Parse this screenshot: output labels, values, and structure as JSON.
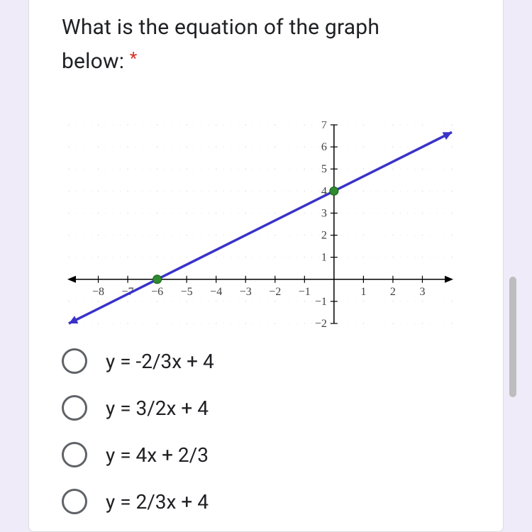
{
  "question": {
    "title_part1": "What is the equation of the graph",
    "title_part2": "below:",
    "required_marker": "*"
  },
  "graph": {
    "type": "line-plot",
    "x_range": [
      -9,
      4
    ],
    "y_range": [
      -2,
      7
    ],
    "x_ticks": [
      -8,
      -7,
      -6,
      -5,
      -4,
      -3,
      -2,
      -1,
      1,
      2,
      3
    ],
    "y_ticks": [
      -2,
      -1,
      1,
      2,
      3,
      4,
      5,
      6,
      7
    ],
    "line": {
      "color": "#3933c8",
      "width": 3.5,
      "points": [
        [
          -9,
          -2
        ],
        [
          4,
          6.666
        ]
      ],
      "arrow_start": true,
      "arrow_end": true
    },
    "marked_points": [
      {
        "x": -6,
        "y": 0,
        "color": "#2e8b2e",
        "radius": 6
      },
      {
        "x": 0,
        "y": 4,
        "color": "#2e8b2e",
        "radius": 6
      }
    ],
    "axis_color": "#000000",
    "grid_color": "#b8b8b8",
    "dot_color": "#cccccc",
    "tick_font_size": 16,
    "tick_color": "#404040",
    "background_color": "#ffffff"
  },
  "options": [
    {
      "label": "y = -2/3x + 4"
    },
    {
      "label": "y = 3/2x + 4"
    },
    {
      "label": "y = 4x + 2/3"
    },
    {
      "label": "y = 2/3x + 4"
    }
  ]
}
